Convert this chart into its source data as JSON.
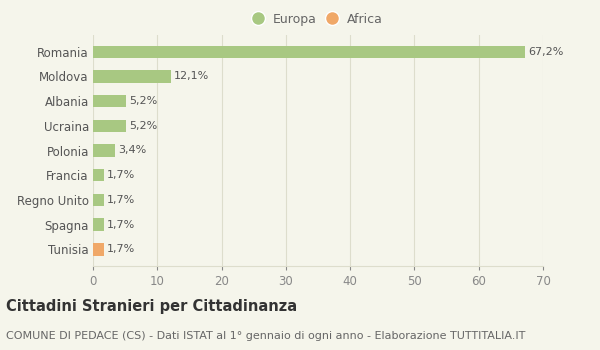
{
  "categories": [
    "Tunisia",
    "Spagna",
    "Regno Unito",
    "Francia",
    "Polonia",
    "Ucraina",
    "Albania",
    "Moldova",
    "Romania"
  ],
  "values": [
    1.7,
    1.7,
    1.7,
    1.7,
    3.4,
    5.2,
    5.2,
    12.1,
    67.2
  ],
  "labels": [
    "1,7%",
    "1,7%",
    "1,7%",
    "1,7%",
    "3,4%",
    "5,2%",
    "5,2%",
    "12,1%",
    "67,2%"
  ],
  "colors": [
    "#f0a868",
    "#a8c882",
    "#a8c882",
    "#a8c882",
    "#a8c882",
    "#a8c882",
    "#a8c882",
    "#a8c882",
    "#a8c882"
  ],
  "legend_labels": [
    "Europa",
    "Africa"
  ],
  "legend_colors": [
    "#a8c882",
    "#f0a868"
  ],
  "title": "Cittadini Stranieri per Cittadinanza",
  "subtitle": "COMUNE DI PEDACE (CS) - Dati ISTAT al 1° gennaio di ogni anno - Elaborazione TUTTITALIA.IT",
  "xlim": [
    0,
    70
  ],
  "xticks": [
    0,
    10,
    20,
    30,
    40,
    50,
    60,
    70
  ],
  "background_color": "#f5f5eb",
  "grid_color": "#ddddcc",
  "bar_height": 0.5,
  "title_fontsize": 10.5,
  "subtitle_fontsize": 8.0,
  "label_fontsize": 8.0,
  "tick_fontsize": 8.5,
  "legend_fontsize": 9.0
}
